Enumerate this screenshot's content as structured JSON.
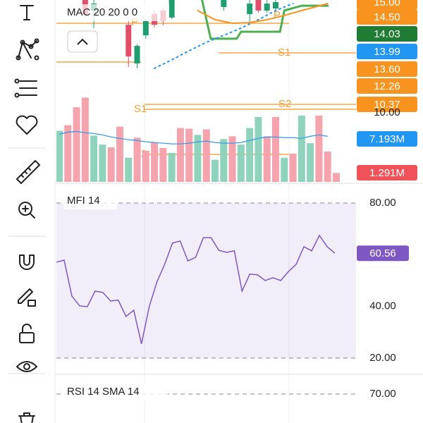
{
  "price_panel": {
    "legend": "MAC 20 20 0 0",
    "ylim": [
      10.2,
      15.2
    ],
    "candles": {
      "x": [
        3,
        4,
        8,
        9,
        10,
        11,
        12,
        13,
        19,
        22,
        23,
        24,
        25
      ],
      "open": [
        15.2,
        14.7,
        14.03,
        12.2,
        13.53,
        14.53,
        14.7,
        14.37,
        14.87,
        14.53,
        15.2,
        14.7,
        14.8
      ],
      "high": [
        15.2,
        15.2,
        14.2,
        13.1,
        14.3,
        14.7,
        14.8,
        15.2,
        15.2,
        15.2,
        15.2,
        15.2,
        15.2
      ],
      "low": [
        14.4,
        13.87,
        12.03,
        11.97,
        13.37,
        13.9,
        14.0,
        14.3,
        14.7,
        14.03,
        14.6,
        14.6,
        14.7
      ],
      "close": [
        14.53,
        15.03,
        12.53,
        13.03,
        14.2,
        14.03,
        14.2,
        15.2,
        15.2,
        15.03,
        14.7,
        15.03,
        15.1
      ],
      "up_color": "#1e9e6e",
      "down_color": "#e0506a"
    },
    "lines": [
      {
        "color": "#4caf50",
        "x": [
          16.5,
          17.5,
          20.5,
          21,
          25.5,
          26,
          28,
          31
        ],
        "values": [
          15.2,
          13.37,
          13.37,
          13.7,
          13.7,
          14.7,
          14.93,
          14.93
        ]
      },
      {
        "color": "#2196f3",
        "x": [
          11,
          13,
          15,
          17,
          19,
          21,
          23,
          25,
          27
        ],
        "values": [
          11.97,
          12.37,
          12.8,
          13.2,
          13.53,
          13.87,
          14.27,
          14.7,
          15.03
        ]
      },
      {
        "color": "#f7931e",
        "x": [
          16,
          18,
          20,
          22,
          24,
          26,
          28,
          31
        ],
        "values": [
          14.7,
          14.27,
          14.1,
          14.13,
          14.27,
          14.47,
          14.7,
          15.03
        ]
      }
    ],
    "pivot_labels": [
      "P",
      "P",
      "S1",
      "S1",
      "S2",
      "S2"
    ],
    "price_tags": [
      {
        "label": "15.00",
        "color": "#f7931e"
      },
      {
        "label": "14.50",
        "color": "#f7931e"
      },
      {
        "label": "14.03",
        "color": "#1e7d32"
      },
      {
        "label": "13.99",
        "color": "#2196f3"
      },
      {
        "label": "13.60",
        "color": "#f7931e"
      },
      {
        "label": "12.26",
        "color": "#f7931e"
      },
      {
        "label": "10.37",
        "color": "#f7931e"
      }
    ]
  },
  "volume_panel": {
    "ylim": [
      0,
      13.06
    ],
    "yticks": [
      {
        "value": 10,
        "label": "10.00"
      }
    ],
    "values": [
      7.4,
      8.2,
      10.8,
      12.2,
      6.7,
      5.4,
      5.0,
      8.0,
      3.5,
      6.4,
      4.5,
      5.7,
      4.9,
      4.2,
      7.8,
      7.7,
      6.8,
      7.6,
      3.2,
      6.2,
      6.6,
      5.4,
      7.8,
      9.4,
      6.6,
      9.4,
      3.5,
      4.1,
      9.6,
      5.6,
      9.6,
      4.4,
      1.291
    ],
    "bar_colors": [
      "#8fd3bd",
      "#f5a3ad",
      "#f5a3ad",
      "#f5a3ad",
      "#8fd3bd",
      "#8fd3bd",
      "#f5a3ad",
      "#f5a3ad",
      "#8fd3bd",
      "#f5a3ad",
      "#f5a3ad",
      "#f5a3ad",
      "#f5a3ad",
      "#8fd3bd",
      "#f5a3ad",
      "#f5a3ad",
      "#8fd3bd",
      "#f5a3ad",
      "#8fd3bd",
      "#8fd3bd",
      "#f5a3ad",
      "#8fd3bd",
      "#8fd3bd",
      "#8fd3bd",
      "#f5a3ad",
      "#f5a3ad",
      "#8fd3bd",
      "#f5a3ad",
      "#8fd3bd",
      "#8fd3bd",
      "#f5a3ad",
      "#f5a3ad",
      "#f5a3ad"
    ],
    "ma": {
      "color": "#3d9be9",
      "values": [
        6.9,
        7.2,
        7.3,
        7.1,
        7.0,
        6.8,
        6.5,
        6.3,
        6.1,
        6.0,
        5.8,
        5.7,
        5.6,
        5.5,
        5.5,
        5.6,
        5.8,
        5.9,
        5.7,
        5.6,
        5.6,
        5.7,
        6.0,
        6.3,
        6.5,
        6.5,
        6.4,
        6.4,
        6.3,
        6.6,
        6.8,
        6.6
      ]
    },
    "tags": [
      {
        "label": "7.193M",
        "color": "#2196f3"
      },
      {
        "label": "1.291M",
        "color": "#f0525a"
      }
    ]
  },
  "mfi_panel": {
    "title": "MFI 14",
    "ylim": [
      14.5,
      87.1
    ],
    "band": [
      20,
      80
    ],
    "color": "#7e57c2",
    "yticks": [
      {
        "value": 80,
        "label": "80.00"
      },
      {
        "value": 40,
        "label": "40.00"
      },
      {
        "value": 20,
        "label": "20.00"
      }
    ],
    "values": [
      57.1,
      57.9,
      44.0,
      40.2,
      39.9,
      45.9,
      45.4,
      42.1,
      42.4,
      36.1,
      38.5,
      25.5,
      39.9,
      49.5,
      56.3,
      64.5,
      65.3,
      57.6,
      59.0,
      66.6,
      66.6,
      61.7,
      60.9,
      61.5,
      45.9,
      52.5,
      52.2,
      50.0,
      51.1,
      50.0,
      53.5,
      56.3,
      63.1,
      61.5,
      67.5,
      63.1,
      60.56
    ],
    "last_label": "60.56"
  },
  "rsi_panel": {
    "title": "RSI 14 SMA 14",
    "yticks": [
      {
        "value": 70,
        "label": "70.00"
      }
    ]
  }
}
